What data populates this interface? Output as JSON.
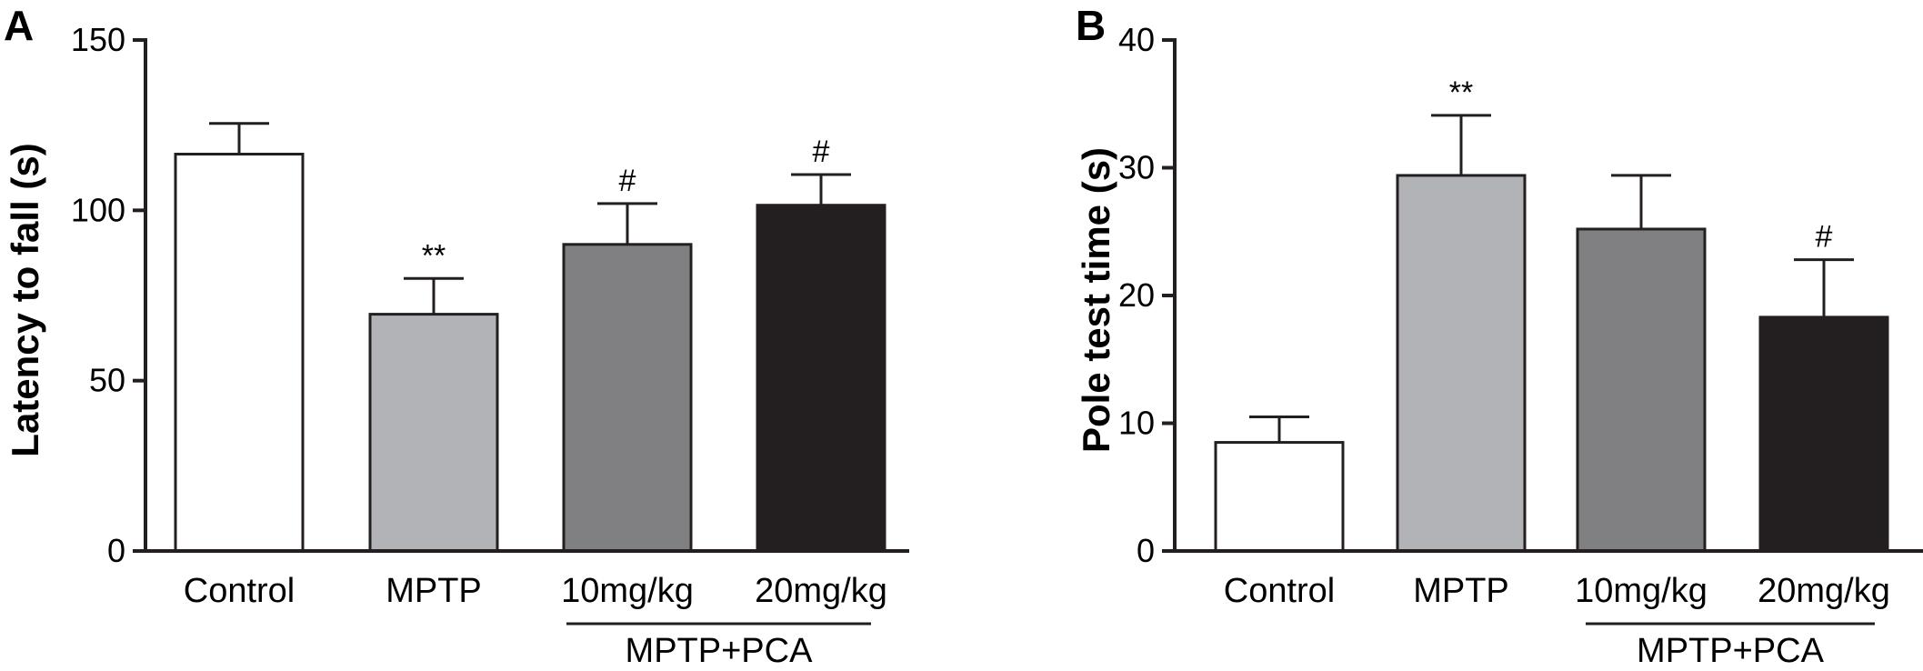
{
  "chart_data": [
    {
      "type": "bar",
      "panel": "A",
      "ylabel": "Latency to fall (s)",
      "xlabel": "",
      "ylim": [
        0,
        150
      ],
      "yticks": [
        "0",
        "50",
        "100",
        "150"
      ],
      "categories": [
        "Control",
        "MPTP",
        "10mg/kg",
        "20mg/kg"
      ],
      "values": [
        116.5,
        69.5,
        90,
        101.5
      ],
      "errors": [
        9,
        10.5,
        12,
        9
      ],
      "bar_colors": [
        "#ffffff",
        "#b1b3b6",
        "#808082",
        "#231f20"
      ],
      "annotations": [
        "",
        "**",
        "#",
        "#"
      ],
      "group_label": "MPTP+PCA",
      "group_span": [
        2,
        3
      ],
      "grid": false
    },
    {
      "type": "bar",
      "panel": "B",
      "ylabel": "Pole test time (s)",
      "xlabel": "",
      "ylim": [
        0,
        40
      ],
      "yticks": [
        "0",
        "10",
        "20",
        "30",
        "40"
      ],
      "categories": [
        "Control",
        "MPTP",
        "10mg/kg",
        "20mg/kg"
      ],
      "values": [
        8.5,
        29.4,
        25.2,
        18.3
      ],
      "errors": [
        2,
        4.7,
        4.2,
        4.5
      ],
      "bar_colors": [
        "#ffffff",
        "#b1b3b6",
        "#808082",
        "#231f20"
      ],
      "annotations": [
        "",
        "**",
        "",
        "#"
      ],
      "group_label": "MPTP+PCA",
      "group_span": [
        2,
        3
      ],
      "grid": false
    }
  ]
}
